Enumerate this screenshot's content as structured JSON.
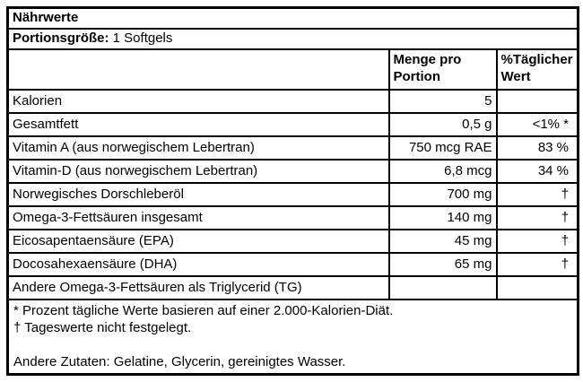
{
  "table": {
    "title": "Nährwerte",
    "serving": {
      "label": "Portionsgröße:",
      "value": "1 Softgels"
    },
    "columns": {
      "amount": "Menge pro Portion",
      "daily": "%Täglicher Wert"
    },
    "rows": [
      {
        "name": "Kalorien",
        "amount": "5",
        "daily": ""
      },
      {
        "name": "Gesamtfett",
        "amount": "0,5 g",
        "daily": "<1% *"
      },
      {
        "name": "Vitamin A (aus norwegischem Lebertran)",
        "amount": "750 mcg RAE",
        "daily": "83 %"
      },
      {
        "name": "Vitamin-D (aus norwegischem Lebertran)",
        "amount": "6,8 mcg",
        "daily": "34 %"
      },
      {
        "name": "Norwegisches Dorschleberöl",
        "amount": "700 mg",
        "daily": "†"
      },
      {
        "name": "Omega-3-Fettsäuren insgesamt",
        "amount": "140 mg",
        "daily": "†"
      },
      {
        "name": "Eicosapentaensäure (EPA)",
        "amount": "45 mg",
        "daily": "†"
      },
      {
        "name": "Docosahexaensäure (DHA)",
        "amount": "65 mg",
        "daily": "†"
      },
      {
        "name": "Andere Omega-3-Fettsäuren als Triglycerid (TG)",
        "amount": "",
        "daily": ""
      }
    ],
    "footnotes": [
      "* Prozent tägliche Werte basieren auf einer 2.000-Kalorien-Diät.",
      "† Tageswerte nicht festgelegt."
    ],
    "other_ingredients": "Andere Zutaten: Gelatine, Glycerin, gereinigtes Wasser.",
    "colors": {
      "border": "#000000",
      "background": "#ffffff",
      "text": "#000000"
    }
  }
}
